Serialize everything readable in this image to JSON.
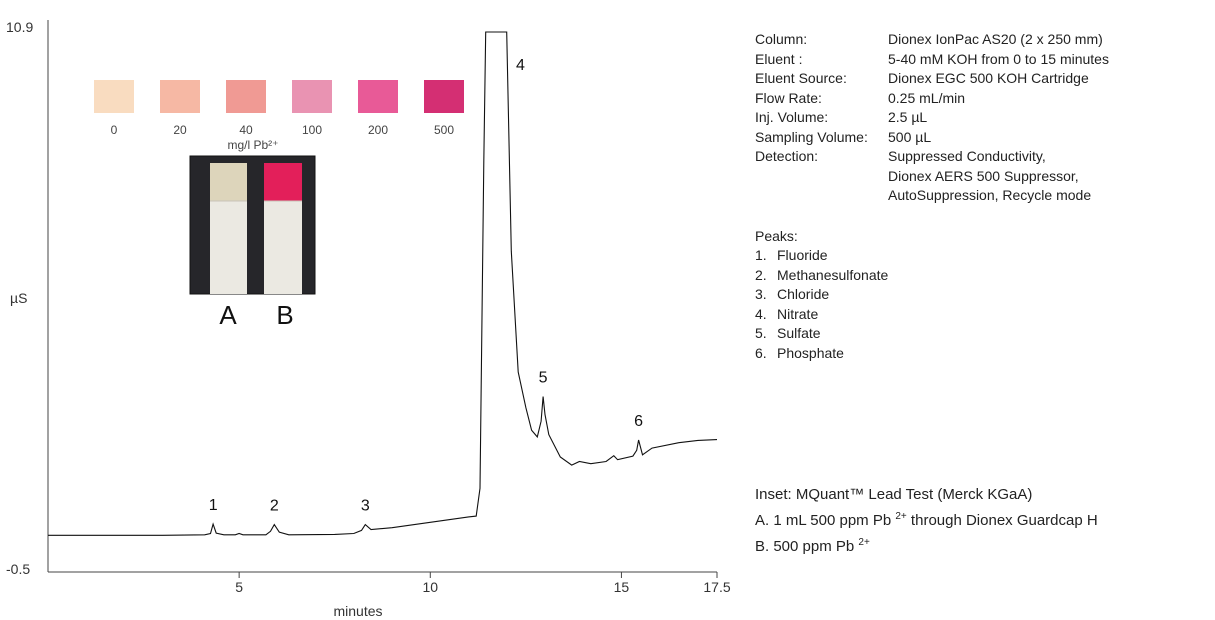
{
  "chart_data": {
    "type": "line",
    "xlabel": "minutes",
    "ylabel": "µS",
    "xlim": [
      0,
      17.5
    ],
    "ylim": [
      -0.5,
      10.9
    ],
    "ytick_labels": [
      "10.9",
      "-0.5"
    ],
    "xticks": [
      5,
      10,
      15,
      17.5
    ],
    "xtick_labels": [
      "5",
      "10",
      "15",
      "17.5"
    ],
    "series": [
      {
        "values": [
          [
            0,
            -0.35
          ],
          [
            3.0,
            -0.35
          ],
          [
            4.1,
            -0.34
          ],
          [
            4.25,
            -0.31
          ],
          [
            4.32,
            -0.1
          ],
          [
            4.4,
            -0.3
          ],
          [
            4.6,
            -0.34
          ],
          [
            4.9,
            -0.34
          ],
          [
            5.0,
            -0.31
          ],
          [
            5.1,
            -0.34
          ],
          [
            5.7,
            -0.34
          ],
          [
            5.82,
            -0.26
          ],
          [
            5.92,
            -0.11
          ],
          [
            6.05,
            -0.28
          ],
          [
            6.3,
            -0.34
          ],
          [
            7.5,
            -0.33
          ],
          [
            8.0,
            -0.31
          ],
          [
            8.2,
            -0.24
          ],
          [
            8.3,
            -0.11
          ],
          [
            8.45,
            -0.22
          ],
          [
            9.0,
            -0.18
          ],
          [
            10.0,
            -0.06
          ],
          [
            11.0,
            0.06
          ],
          [
            11.2,
            0.08
          ],
          [
            11.3,
            0.7
          ],
          [
            11.4,
            8.0
          ],
          [
            11.45,
            10.9
          ],
          [
            12.0,
            10.9
          ],
          [
            12.12,
            6.0
          ],
          [
            12.3,
            3.3
          ],
          [
            12.5,
            2.5
          ],
          [
            12.65,
            2.0
          ],
          [
            12.8,
            1.85
          ],
          [
            12.9,
            2.2
          ],
          [
            12.95,
            2.75
          ],
          [
            13.0,
            2.35
          ],
          [
            13.1,
            1.9
          ],
          [
            13.4,
            1.4
          ],
          [
            13.7,
            1.22
          ],
          [
            13.9,
            1.3
          ],
          [
            14.2,
            1.25
          ],
          [
            14.6,
            1.3
          ],
          [
            14.8,
            1.43
          ],
          [
            14.9,
            1.34
          ],
          [
            15.3,
            1.42
          ],
          [
            15.4,
            1.55
          ],
          [
            15.45,
            1.78
          ],
          [
            15.55,
            1.45
          ],
          [
            15.8,
            1.6
          ],
          [
            16.5,
            1.72
          ],
          [
            17.0,
            1.77
          ],
          [
            17.5,
            1.79
          ]
        ]
      }
    ],
    "peaks": [
      {
        "label": "1",
        "x": 4.32,
        "y": -0.1
      },
      {
        "label": "2",
        "x": 5.92,
        "y": -0.11
      },
      {
        "label": "3",
        "x": 8.3,
        "y": -0.11
      },
      {
        "label": "4",
        "x": 12.15,
        "y": 10.9
      },
      {
        "label": "5",
        "x": 12.95,
        "y": 2.75
      },
      {
        "label": "6",
        "x": 15.45,
        "y": 1.78
      }
    ],
    "grid": false,
    "legend": "none"
  },
  "inset": {
    "swatches": [
      {
        "label": "0",
        "color": "#f9dcc0"
      },
      {
        "label": "20",
        "color": "#f6b8a4"
      },
      {
        "label": "40",
        "color": "#f09a94"
      },
      {
        "label": "100",
        "color": "#e993b2"
      },
      {
        "label": "200",
        "color": "#e85a97"
      },
      {
        "label": "500",
        "color": "#d42f73"
      }
    ],
    "unit_label": "mg/l Pb²⁺",
    "strip_a_label": "A",
    "strip_b_label": "B",
    "strip_a_color": "#ddd5bb",
    "strip_b_color": "#e31f5a"
  },
  "conditions": [
    {
      "label": "Column:",
      "value": "Dionex IonPac AS20 (2 x 250 mm)"
    },
    {
      "label": "Eluent :",
      "value": "5-40 mM KOH from 0 to 15 minutes"
    },
    {
      "label": "Eluent Source:",
      "value": "Dionex EGC 500 KOH Cartridge"
    },
    {
      "label": "Flow Rate:",
      "value": "0.25 mL/min"
    },
    {
      "label": "Inj. Volume:",
      "value": "2.5 µL"
    },
    {
      "label": "Sampling Volume:",
      "value": "500 µL"
    },
    {
      "label": "Detection:",
      "value": "Suppressed Conductivity,\nDionex AERS 500 Suppressor,\nAutoSuppression, Recycle mode"
    }
  ],
  "peaks_heading": "Peaks:",
  "peaks_list": [
    {
      "num": "1.",
      "name": "Fluoride"
    },
    {
      "num": "2.",
      "name": "Methanesulfonate"
    },
    {
      "num": "3.",
      "name": "Chloride"
    },
    {
      "num": "4.",
      "name": "Nitrate"
    },
    {
      "num": "5.",
      "name": "Sulfate"
    },
    {
      "num": "6.",
      "name": "Phosphate"
    }
  ],
  "inset_caption": {
    "title": "Inset: MQuant™ Lead Test (Merck KGaA)",
    "line_a": "A. 1 mL 500 ppm Pb",
    "line_b": "B. 500 ppm Pb",
    "superscript": "2+",
    "line_a_suffix": " through Dionex Guardcap H"
  }
}
